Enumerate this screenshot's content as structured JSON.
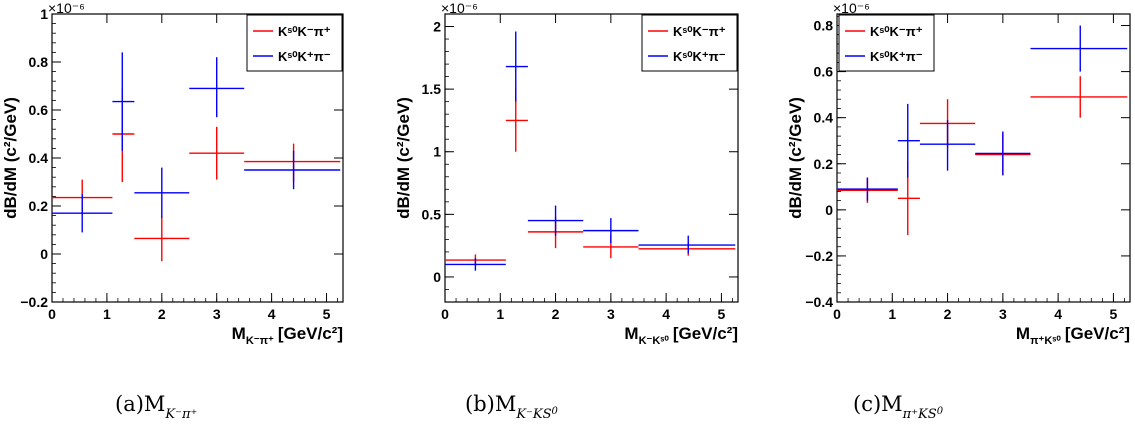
{
  "figure": {
    "ylabel": "dB/dM (c²/GeV)",
    "exponent": "×10⁻⁶",
    "colors": {
      "red": "#ff0000",
      "blue": "#0000ff",
      "axis": "#000000"
    }
  },
  "chart_data": [
    {
      "type": "scatter",
      "panel": "a",
      "caption": "(a)M",
      "caption_sub": "K⁻π⁺",
      "xlabel": "M",
      "xlabel_sub": "K⁻π⁺",
      "xlabel_unit": "[GeV/c²]",
      "ylabel": "dB/dM (c²/GeV)",
      "xlim": [
        0,
        5.3
      ],
      "ylim": [
        -0.2,
        1.0
      ],
      "xticks": [
        0,
        1,
        2,
        3,
        4,
        5
      ],
      "yticks": [
        -0.2,
        0,
        0.2,
        0.4,
        0.6,
        0.8,
        1
      ],
      "ytick_labels": [
        "−0.2",
        "0",
        "0.2",
        "0.4",
        "0.6",
        "0.8",
        "1"
      ],
      "legend": "top-right",
      "series": [
        {
          "name": "Kˢ⁰K⁻π⁺",
          "color": "red",
          "points": [
            {
              "x": 0.55,
              "xlo": 0.0,
              "xhi": 1.1,
              "y": 0.235,
              "ylo": 0.16,
              "yhi": 0.31
            },
            {
              "x": 1.28,
              "xlo": 1.1,
              "xhi": 1.5,
              "y": 0.5,
              "ylo": 0.3,
              "yhi": 0.69
            },
            {
              "x": 2.0,
              "xlo": 1.5,
              "xhi": 2.5,
              "y": 0.065,
              "ylo": -0.03,
              "yhi": 0.16
            },
            {
              "x": 3.0,
              "xlo": 2.5,
              "xhi": 3.5,
              "y": 0.42,
              "ylo": 0.31,
              "yhi": 0.53
            },
            {
              "x": 4.4,
              "xlo": 3.5,
              "xhi": 5.25,
              "y": 0.385,
              "ylo": 0.3,
              "yhi": 0.46
            }
          ]
        },
        {
          "name": "Kˢ⁰K⁺π⁻",
          "color": "blue",
          "points": [
            {
              "x": 0.55,
              "xlo": 0.0,
              "xhi": 1.1,
              "y": 0.17,
              "ylo": 0.09,
              "yhi": 0.25
            },
            {
              "x": 1.28,
              "xlo": 1.1,
              "xhi": 1.5,
              "y": 0.635,
              "ylo": 0.43,
              "yhi": 0.84
            },
            {
              "x": 2.0,
              "xlo": 1.5,
              "xhi": 2.5,
              "y": 0.255,
              "ylo": 0.15,
              "yhi": 0.36
            },
            {
              "x": 3.0,
              "xlo": 2.5,
              "xhi": 3.5,
              "y": 0.69,
              "ylo": 0.57,
              "yhi": 0.82
            },
            {
              "x": 4.4,
              "xlo": 3.5,
              "xhi": 5.25,
              "y": 0.35,
              "ylo": 0.27,
              "yhi": 0.43
            }
          ]
        }
      ]
    },
    {
      "type": "scatter",
      "panel": "b",
      "caption": "(b)M",
      "caption_sub": "K⁻K",
      "xlabel": "M",
      "xlabel_sub": "K⁻Kˢ⁰",
      "xlabel_unit": "[GeV/c²]",
      "ylabel": "dB/dM (c²/GeV)",
      "xlim": [
        0,
        5.3
      ],
      "ylim": [
        -0.2,
        2.1
      ],
      "xticks": [
        0,
        1,
        2,
        3,
        4,
        5
      ],
      "yticks": [
        0,
        0.5,
        1,
        1.5,
        2
      ],
      "ytick_labels": [
        "0",
        "0.5",
        "1",
        "1.5",
        "2"
      ],
      "legend": "top-right",
      "series": [
        {
          "name": "Kˢ⁰K⁻π⁺",
          "color": "red",
          "points": [
            {
              "x": 0.55,
              "xlo": 0.0,
              "xhi": 1.1,
              "y": 0.135,
              "ylo": 0.09,
              "yhi": 0.18
            },
            {
              "x": 1.28,
              "xlo": 1.1,
              "xhi": 1.5,
              "y": 1.25,
              "ylo": 1.0,
              "yhi": 1.51
            },
            {
              "x": 2.0,
              "xlo": 1.5,
              "xhi": 2.5,
              "y": 0.36,
              "ylo": 0.23,
              "yhi": 0.48
            },
            {
              "x": 3.0,
              "xlo": 2.5,
              "xhi": 3.5,
              "y": 0.24,
              "ylo": 0.15,
              "yhi": 0.34
            },
            {
              "x": 4.4,
              "xlo": 3.5,
              "xhi": 5.25,
              "y": 0.225,
              "ylo": 0.17,
              "yhi": 0.28
            }
          ]
        },
        {
          "name": "Kˢ⁰K⁺π⁻",
          "color": "blue",
          "points": [
            {
              "x": 0.55,
              "xlo": 0.0,
              "xhi": 1.1,
              "y": 0.1,
              "ylo": 0.05,
              "yhi": 0.15
            },
            {
              "x": 1.28,
              "xlo": 1.1,
              "xhi": 1.5,
              "y": 1.68,
              "ylo": 1.4,
              "yhi": 1.96
            },
            {
              "x": 2.0,
              "xlo": 1.5,
              "xhi": 2.5,
              "y": 0.45,
              "ylo": 0.33,
              "yhi": 0.57
            },
            {
              "x": 3.0,
              "xlo": 2.5,
              "xhi": 3.5,
              "y": 0.37,
              "ylo": 0.27,
              "yhi": 0.47
            },
            {
              "x": 4.4,
              "xlo": 3.5,
              "xhi": 5.25,
              "y": 0.255,
              "ylo": 0.19,
              "yhi": 0.33
            }
          ]
        }
      ]
    },
    {
      "type": "scatter",
      "panel": "c",
      "caption": "(c)M",
      "caption_sub": "π⁺K",
      "xlabel": "M",
      "xlabel_sub": "π⁺Kˢ⁰",
      "xlabel_unit": "[GeV/c²]",
      "ylabel": "dB/dM (c²/GeV)",
      "xlim": [
        0,
        5.3
      ],
      "ylim": [
        -0.4,
        0.85
      ],
      "xticks": [
        0,
        1,
        2,
        3,
        4,
        5
      ],
      "yticks": [
        -0.4,
        -0.2,
        0,
        0.2,
        0.4,
        0.6,
        0.8
      ],
      "ytick_labels": [
        "−0.4",
        "−0.2",
        "0",
        "0.2",
        "0.4",
        "0.6",
        "0.8"
      ],
      "legend": "top-left",
      "series": [
        {
          "name": "Kˢ⁰K⁻π⁺",
          "color": "red",
          "points": [
            {
              "x": 0.55,
              "xlo": 0.0,
              "xhi": 1.1,
              "y": 0.085,
              "ylo": 0.03,
              "yhi": 0.14
            },
            {
              "x": 1.28,
              "xlo": 1.1,
              "xhi": 1.5,
              "y": 0.05,
              "ylo": -0.11,
              "yhi": 0.21
            },
            {
              "x": 2.0,
              "xlo": 1.5,
              "xhi": 2.5,
              "y": 0.375,
              "ylo": 0.27,
              "yhi": 0.48
            },
            {
              "x": 3.0,
              "xlo": 2.5,
              "xhi": 3.5,
              "y": 0.24,
              "ylo": 0.15,
              "yhi": 0.33
            },
            {
              "x": 4.4,
              "xlo": 3.5,
              "xhi": 5.25,
              "y": 0.49,
              "ylo": 0.4,
              "yhi": 0.58
            }
          ]
        },
        {
          "name": "Kˢ⁰K⁺π⁻",
          "color": "blue",
          "points": [
            {
              "x": 0.55,
              "xlo": 0.0,
              "xhi": 1.1,
              "y": 0.09,
              "ylo": 0.04,
              "yhi": 0.14
            },
            {
              "x": 1.28,
              "xlo": 1.1,
              "xhi": 1.5,
              "y": 0.3,
              "ylo": 0.14,
              "yhi": 0.46
            },
            {
              "x": 2.0,
              "xlo": 1.5,
              "xhi": 2.5,
              "y": 0.285,
              "ylo": 0.17,
              "yhi": 0.39
            },
            {
              "x": 3.0,
              "xlo": 2.5,
              "xhi": 3.5,
              "y": 0.245,
              "ylo": 0.15,
              "yhi": 0.34
            },
            {
              "x": 4.4,
              "xlo": 3.5,
              "xhi": 5.25,
              "y": 0.7,
              "ylo": 0.6,
              "yhi": 0.8
            }
          ]
        }
      ]
    }
  ]
}
